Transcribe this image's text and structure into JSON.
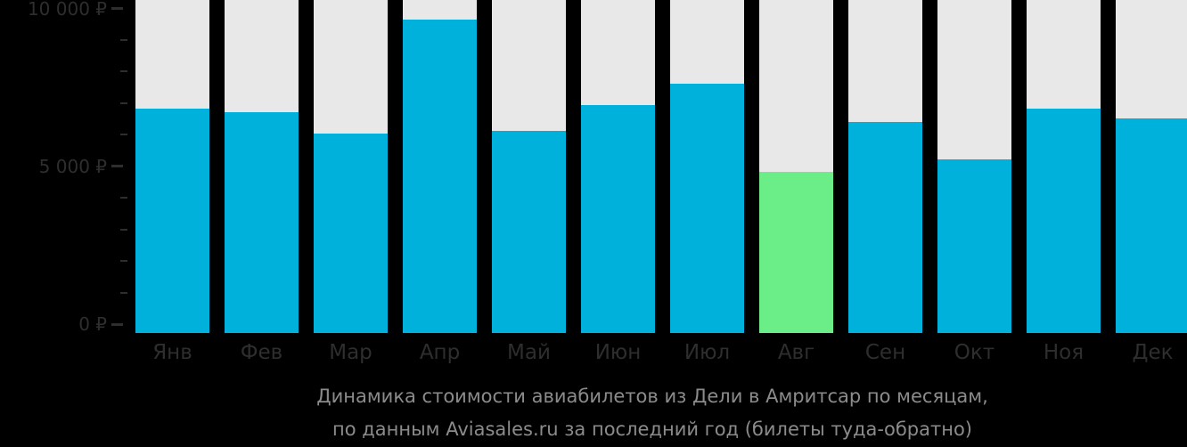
{
  "chart_data": {
    "type": "bar",
    "title": "Динамика стоимости авиабилетов из Дели в Амритсар по месяцам, по данным Aviasales.ru за последний год (билеты туда-обратно)",
    "categories": [
      "Янв",
      "Фев",
      "Мар",
      "Апр",
      "Май",
      "Июн",
      "Июл",
      "Авг",
      "Сен",
      "Окт",
      "Ноя",
      "Дек"
    ],
    "values": [
      6840,
      6700,
      6040,
      9640,
      6130,
      6930,
      7610,
      4820,
      6410,
      5220,
      6840,
      6520
    ],
    "unit": "₽",
    "min_price_index": 7,
    "xlabel": "",
    "ylabel": "",
    "ylim": [
      0,
      10000
    ],
    "grid": false,
    "legend_position": "none",
    "y_minor_tick_step": 1000,
    "y_major_ticks": [
      {
        "value": 0,
        "label": "0 ₽"
      },
      {
        "value": 5000,
        "label": "5 000 ₽"
      },
      {
        "value": 10000,
        "label": "10 000 ₽"
      }
    ]
  },
  "caption": {
    "line1": "Динамика стоимости авиабилетов из Дели в Амритсар по месяцам,",
    "line2": "по данным Aviasales.ru за последний год (билеты туда-обратно)"
  },
  "colors": {
    "bar": "#00b1dc",
    "bar_min_price": "#6bee87",
    "bar_track": "#e8e8e8",
    "axis_text": "#2e2e2e",
    "caption_text": "#8b8b8b",
    "background": "#000000"
  }
}
